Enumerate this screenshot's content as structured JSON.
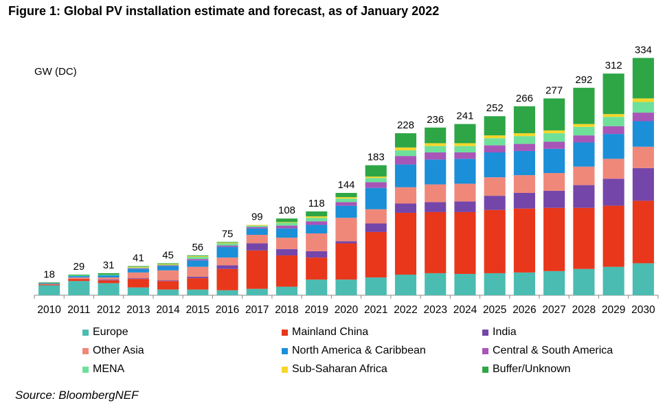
{
  "chart_data": {
    "type": "bar",
    "stacked": true,
    "title": "Figure 1:  Global PV installation estimate and forecast, as of January 2022",
    "ylabel": "GW (DC)",
    "xlabel": "",
    "ylim": [
      0,
      345
    ],
    "source": "Source: BloombergNEF",
    "categories": [
      "2010",
      "2011",
      "2012",
      "2013",
      "2014",
      "2015",
      "2016",
      "2017",
      "2018",
      "2019",
      "2020",
      "2021",
      "2022",
      "2023",
      "2024",
      "2025",
      "2026",
      "2027",
      "2028",
      "2029",
      "2030"
    ],
    "totals": [
      18,
      29,
      31,
      41,
      45,
      56,
      75,
      99,
      108,
      118,
      144,
      183,
      228,
      236,
      241,
      252,
      266,
      277,
      292,
      312,
      334
    ],
    "series": [
      {
        "name": "Europe",
        "color": "#4bbcb2",
        "values": [
          14,
          20,
          17,
          11,
          8,
          8,
          7,
          9,
          12,
          22,
          22,
          25,
          29,
          31,
          30,
          31,
          32,
          34,
          37,
          40,
          45
        ]
      },
      {
        "name": "Mainland China",
        "color": "#e8371b",
        "values": [
          1,
          3,
          4,
          12,
          12,
          16,
          30,
          54,
          44,
          31,
          51,
          64,
          87,
          86,
          87,
          89,
          90,
          89,
          86,
          86,
          88
        ]
      },
      {
        "name": "India",
        "color": "#7446a9",
        "values": [
          0,
          0,
          1,
          1,
          1,
          2,
          5,
          10,
          9,
          9,
          3,
          12,
          13,
          14,
          15,
          20,
          22,
          24,
          32,
          38,
          46
        ]
      },
      {
        "name": "Other Asia",
        "color": "#f0887a",
        "values": [
          1,
          2,
          3,
          8,
          14,
          14,
          11,
          12,
          16,
          25,
          33,
          20,
          23,
          25,
          25,
          26,
          25,
          25,
          26,
          28,
          30
        ]
      },
      {
        "name": "North America & Caribbean",
        "color": "#1b8fd8",
        "values": [
          1,
          2,
          3,
          5,
          6,
          9,
          15,
          9,
          13,
          12,
          17,
          30,
          32,
          35,
          35,
          35,
          34,
          34,
          34,
          35,
          36
        ]
      },
      {
        "name": "Central & South America",
        "color": "#a855b8",
        "values": [
          0,
          0,
          0,
          1,
          1,
          2,
          2,
          2,
          4,
          5,
          5,
          8,
          12,
          10,
          9,
          10,
          10,
          10,
          10,
          11,
          12
        ]
      },
      {
        "name": "MENA",
        "color": "#6ee09a",
        "values": [
          0,
          1,
          1,
          1,
          1,
          3,
          3,
          2,
          4,
          5,
          5,
          6,
          8,
          9,
          9,
          10,
          11,
          12,
          12,
          13,
          15
        ]
      },
      {
        "name": "Sub-Saharan Africa",
        "color": "#f5d62a",
        "values": [
          0,
          0,
          0,
          1,
          1,
          1,
          1,
          1,
          1,
          2,
          2,
          2,
          4,
          4,
          4,
          4,
          4,
          4,
          4,
          4,
          5
        ]
      },
      {
        "name": "Buffer/Unknown",
        "color": "#2ea646",
        "values": [
          1,
          1,
          2,
          1,
          1,
          1,
          1,
          0,
          5,
          7,
          6,
          16,
          20,
          22,
          27,
          27,
          38,
          45,
          51,
          57,
          57
        ]
      }
    ],
    "legend_position": "bottom"
  }
}
